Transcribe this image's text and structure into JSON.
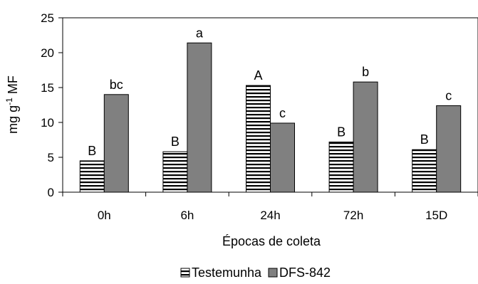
{
  "chart_data": {
    "type": "bar",
    "categories": [
      "0h",
      "6h",
      "24h",
      "72h",
      "15D"
    ],
    "series": [
      {
        "name": "Testemunha",
        "values": [
          4.5,
          5.8,
          15.3,
          7.2,
          6.1
        ],
        "labels": [
          "B",
          "B",
          "A",
          "B",
          "B"
        ],
        "fill": "horizontal-stripes"
      },
      {
        "name": "DFS-842",
        "values": [
          14.0,
          21.4,
          9.9,
          15.8,
          12.4
        ],
        "labels": [
          "bc",
          "a",
          "c",
          "b",
          "c"
        ],
        "color": "#808080"
      }
    ],
    "xlabel": "Épocas de coleta",
    "ylabel": {
      "base": "mg g",
      "sup": "-1",
      "rest": " MF"
    },
    "ylim": [
      0,
      25
    ],
    "yticks": [
      0,
      5,
      10,
      15,
      20,
      25
    ],
    "legend": "bottom",
    "grid": false
  }
}
